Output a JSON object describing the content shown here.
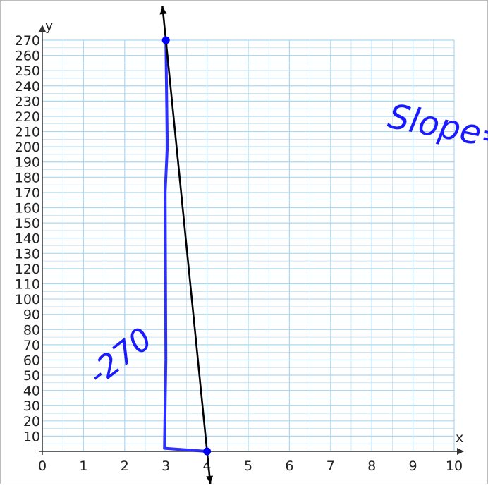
{
  "chart_data": {
    "type": "line",
    "title": "",
    "xlabel": "x",
    "ylabel": "y",
    "xlim": [
      0,
      10
    ],
    "ylim": [
      0,
      270
    ],
    "grid": true,
    "x_ticks": [
      0,
      1,
      2,
      3,
      4,
      5,
      6,
      7,
      8,
      9,
      10
    ],
    "y_ticks": [
      10,
      20,
      30,
      40,
      50,
      60,
      70,
      80,
      90,
      100,
      110,
      120,
      130,
      140,
      150,
      160,
      170,
      180,
      190,
      200,
      210,
      220,
      230,
      240,
      250,
      260,
      270
    ],
    "line": {
      "points": [
        [
          3,
          270
        ],
        [
          4,
          0
        ]
      ],
      "color": "#000000"
    },
    "points": [
      {
        "x": 3,
        "y": 270
      },
      {
        "x": 4,
        "y": 0
      }
    ],
    "point_color": "#0000ff",
    "grid_color": "#aad8f2",
    "annotation_color": "#1a1aff",
    "annotations": [
      {
        "text": "-270",
        "kind": "handwritten"
      },
      {
        "text": "Slope=",
        "kind": "handwritten"
      }
    ]
  }
}
